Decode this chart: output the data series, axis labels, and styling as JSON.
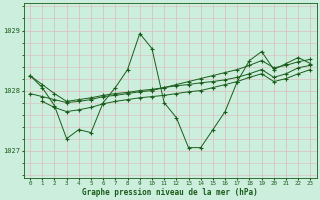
{
  "bg_color": "#cceedd",
  "line_color": "#1a5c1a",
  "grid_color": "#aaccbb",
  "title": "Graphe pression niveau de la mer (hPa)",
  "xlabel_ticks": [
    0,
    1,
    2,
    3,
    4,
    5,
    6,
    7,
    8,
    9,
    10,
    11,
    12,
    13,
    14,
    15,
    16,
    17,
    18,
    19,
    20,
    21,
    22,
    23
  ],
  "yticks": [
    1027,
    1028,
    1029
  ],
  "ylim": [
    1026.55,
    1029.45
  ],
  "xlim": [
    -0.5,
    23.5
  ],
  "lines": [
    {
      "x": [
        0,
        1,
        2,
        3,
        4,
        5,
        6,
        7,
        8,
        9,
        10,
        11,
        12,
        13,
        14,
        15,
        16,
        17,
        18,
        19,
        20,
        21,
        22,
        23
      ],
      "y": [
        1028.25,
        1028.05,
        1027.75,
        1027.2,
        1027.35,
        1027.3,
        1027.8,
        1028.05,
        1028.35,
        1028.95,
        1028.7,
        1027.8,
        1027.55,
        1027.05,
        1027.05,
        1027.35,
        1027.65,
        1028.15,
        1028.5,
        1028.65,
        1028.35,
        1028.45,
        1028.55,
        1028.45
      ]
    },
    {
      "x": [
        0,
        1,
        2,
        3,
        4,
        5,
        6,
        7,
        8,
        9,
        10,
        11,
        12,
        13,
        14,
        15,
        16,
        17,
        18,
        19,
        20,
        21,
        22,
        23
      ],
      "y": [
        1027.95,
        1027.9,
        1027.85,
        1027.8,
        1027.82,
        1027.85,
        1027.9,
        1027.92,
        1027.95,
        1027.98,
        1028.0,
        1028.05,
        1028.1,
        1028.15,
        1028.2,
        1028.25,
        1028.3,
        1028.35,
        1028.42,
        1028.5,
        1028.38,
        1028.42,
        1028.48,
        1028.52
      ]
    },
    {
      "x": [
        0,
        1,
        2,
        3,
        4,
        5,
        6,
        7,
        8,
        9,
        10,
        11,
        12,
        13,
        14,
        15,
        16,
        17,
        18,
        19,
        20,
        21,
        22,
        23
      ],
      "y": [
        1028.25,
        1028.1,
        1027.95,
        1027.82,
        1027.85,
        1027.88,
        1027.92,
        1027.95,
        1027.97,
        1028.0,
        1028.02,
        1028.05,
        1028.08,
        1028.1,
        1028.13,
        1028.15,
        1028.18,
        1028.22,
        1028.28,
        1028.35,
        1028.22,
        1028.28,
        1028.38,
        1028.42
      ]
    },
    {
      "x": [
        1,
        2,
        3,
        4,
        5,
        6,
        7,
        8,
        9,
        10,
        11,
        12,
        13,
        14,
        15,
        16,
        17,
        18,
        19,
        20,
        21,
        22,
        23
      ],
      "y": [
        1027.82,
        1027.72,
        1027.65,
        1027.68,
        1027.72,
        1027.78,
        1027.82,
        1027.85,
        1027.88,
        1027.9,
        1027.92,
        1027.95,
        1027.98,
        1028.0,
        1028.05,
        1028.1,
        1028.15,
        1028.22,
        1028.28,
        1028.15,
        1028.2,
        1028.28,
        1028.35
      ]
    }
  ]
}
